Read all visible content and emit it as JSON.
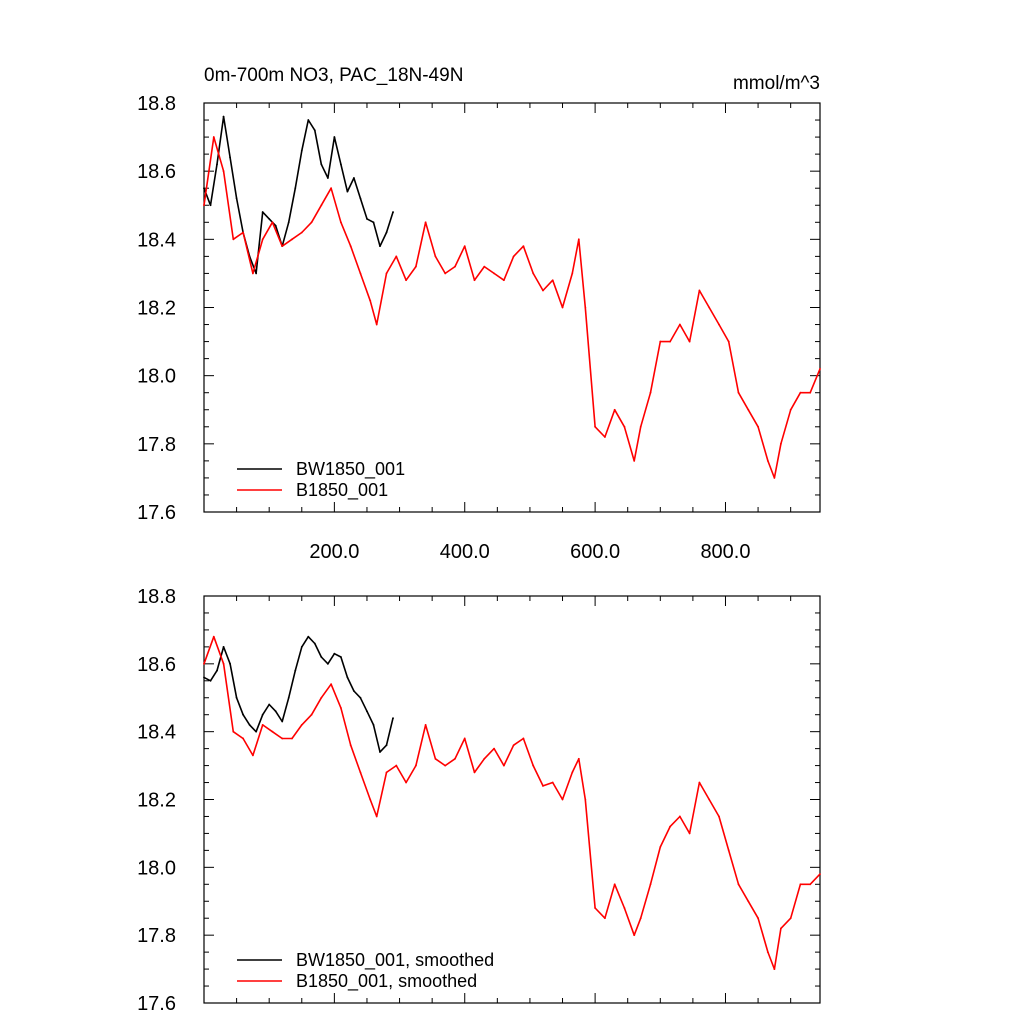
{
  "chart_data": [
    {
      "type": "line",
      "title": "0m-700m NO3, PAC_18N-49N",
      "units": "mmol/m^3",
      "xlim": [
        0,
        945
      ],
      "ylim": [
        17.6,
        18.8
      ],
      "yticks": [
        "18.8",
        "18.6",
        "18.4",
        "18.2",
        "18.0",
        "17.8",
        "17.6"
      ],
      "xticks": [
        "200.0",
        "400.0",
        "600.0",
        "800.0"
      ],
      "legend_position": "bottom-left",
      "series": [
        {
          "name": "BW1850_001",
          "color": "#000000",
          "x": [
            0,
            10,
            20,
            30,
            40,
            50,
            60,
            70,
            80,
            90,
            100,
            110,
            120,
            130,
            140,
            150,
            160,
            170,
            180,
            190,
            200,
            210,
            220,
            230,
            240,
            250,
            260,
            270,
            280,
            290
          ],
          "y": [
            18.55,
            18.5,
            18.62,
            18.76,
            18.64,
            18.52,
            18.42,
            18.35,
            18.3,
            18.48,
            18.46,
            18.44,
            18.38,
            18.45,
            18.55,
            18.66,
            18.75,
            18.72,
            18.62,
            18.58,
            18.7,
            18.62,
            18.54,
            18.58,
            18.52,
            18.46,
            18.45,
            18.38,
            18.42,
            18.48
          ]
        },
        {
          "name": "B1850_001",
          "color": "#ff0000",
          "x": [
            0,
            15,
            30,
            45,
            60,
            75,
            90,
            105,
            120,
            135,
            150,
            165,
            180,
            195,
            210,
            225,
            240,
            255,
            265,
            280,
            295,
            310,
            325,
            340,
            355,
            370,
            385,
            400,
            415,
            430,
            445,
            460,
            475,
            490,
            505,
            520,
            535,
            550,
            565,
            575,
            585,
            600,
            615,
            630,
            645,
            660,
            670,
            685,
            700,
            715,
            730,
            745,
            760,
            775,
            790,
            805,
            820,
            835,
            850,
            865,
            875,
            885,
            900,
            915,
            930,
            945
          ],
          "y": [
            18.5,
            18.7,
            18.6,
            18.4,
            18.42,
            18.3,
            18.4,
            18.45,
            18.38,
            18.4,
            18.42,
            18.45,
            18.5,
            18.55,
            18.45,
            18.38,
            18.3,
            18.22,
            18.15,
            18.3,
            18.35,
            18.28,
            18.32,
            18.45,
            18.35,
            18.3,
            18.32,
            18.38,
            18.28,
            18.32,
            18.3,
            18.28,
            18.35,
            18.38,
            18.3,
            18.25,
            18.28,
            18.2,
            18.3,
            18.4,
            18.2,
            17.85,
            17.82,
            17.9,
            17.85,
            17.75,
            17.85,
            17.95,
            18.1,
            18.1,
            18.15,
            18.1,
            18.25,
            18.2,
            18.15,
            18.1,
            17.95,
            17.9,
            17.85,
            17.75,
            17.7,
            17.8,
            17.9,
            17.95,
            17.95,
            18.02
          ]
        }
      ]
    },
    {
      "type": "line",
      "xlim": [
        0,
        945
      ],
      "ylim": [
        17.6,
        18.8
      ],
      "yticks": [
        "18.8",
        "18.6",
        "18.4",
        "18.2",
        "18.0",
        "17.8",
        "17.6"
      ],
      "legend_position": "bottom-left",
      "series": [
        {
          "name": "BW1850_001, smoothed",
          "color": "#000000",
          "x": [
            0,
            10,
            20,
            30,
            40,
            50,
            60,
            70,
            80,
            90,
            100,
            110,
            120,
            130,
            140,
            150,
            160,
            170,
            180,
            190,
            200,
            210,
            220,
            230,
            240,
            250,
            260,
            270,
            280,
            290
          ],
          "y": [
            18.56,
            18.55,
            18.58,
            18.65,
            18.6,
            18.5,
            18.45,
            18.42,
            18.4,
            18.45,
            18.48,
            18.46,
            18.43,
            18.5,
            18.58,
            18.65,
            18.68,
            18.66,
            18.62,
            18.6,
            18.63,
            18.62,
            18.56,
            18.52,
            18.5,
            18.46,
            18.42,
            18.34,
            18.36,
            18.44
          ]
        },
        {
          "name": "B1850_001, smoothed",
          "color": "#ff0000",
          "x": [
            0,
            15,
            30,
            45,
            60,
            75,
            90,
            105,
            120,
            135,
            150,
            165,
            180,
            195,
            210,
            225,
            240,
            255,
            265,
            280,
            295,
            310,
            325,
            340,
            355,
            370,
            385,
            400,
            415,
            430,
            445,
            460,
            475,
            490,
            505,
            520,
            535,
            550,
            565,
            575,
            585,
            600,
            615,
            630,
            645,
            660,
            670,
            685,
            700,
            715,
            730,
            745,
            760,
            775,
            790,
            805,
            820,
            835,
            850,
            865,
            875,
            885,
            900,
            915,
            930,
            945
          ],
          "y": [
            18.6,
            18.68,
            18.6,
            18.4,
            18.38,
            18.33,
            18.42,
            18.4,
            18.38,
            18.38,
            18.42,
            18.45,
            18.5,
            18.54,
            18.47,
            18.36,
            18.28,
            18.2,
            18.15,
            18.28,
            18.3,
            18.25,
            18.3,
            18.42,
            18.32,
            18.3,
            18.32,
            18.38,
            18.28,
            18.32,
            18.35,
            18.3,
            18.36,
            18.38,
            18.3,
            18.24,
            18.25,
            18.2,
            18.28,
            18.32,
            18.2,
            17.88,
            17.85,
            17.95,
            17.88,
            17.8,
            17.85,
            17.95,
            18.06,
            18.12,
            18.15,
            18.1,
            18.25,
            18.2,
            18.15,
            18.05,
            17.95,
            17.9,
            17.85,
            17.75,
            17.7,
            17.82,
            17.85,
            17.95,
            17.95,
            17.98
          ]
        }
      ]
    }
  ]
}
